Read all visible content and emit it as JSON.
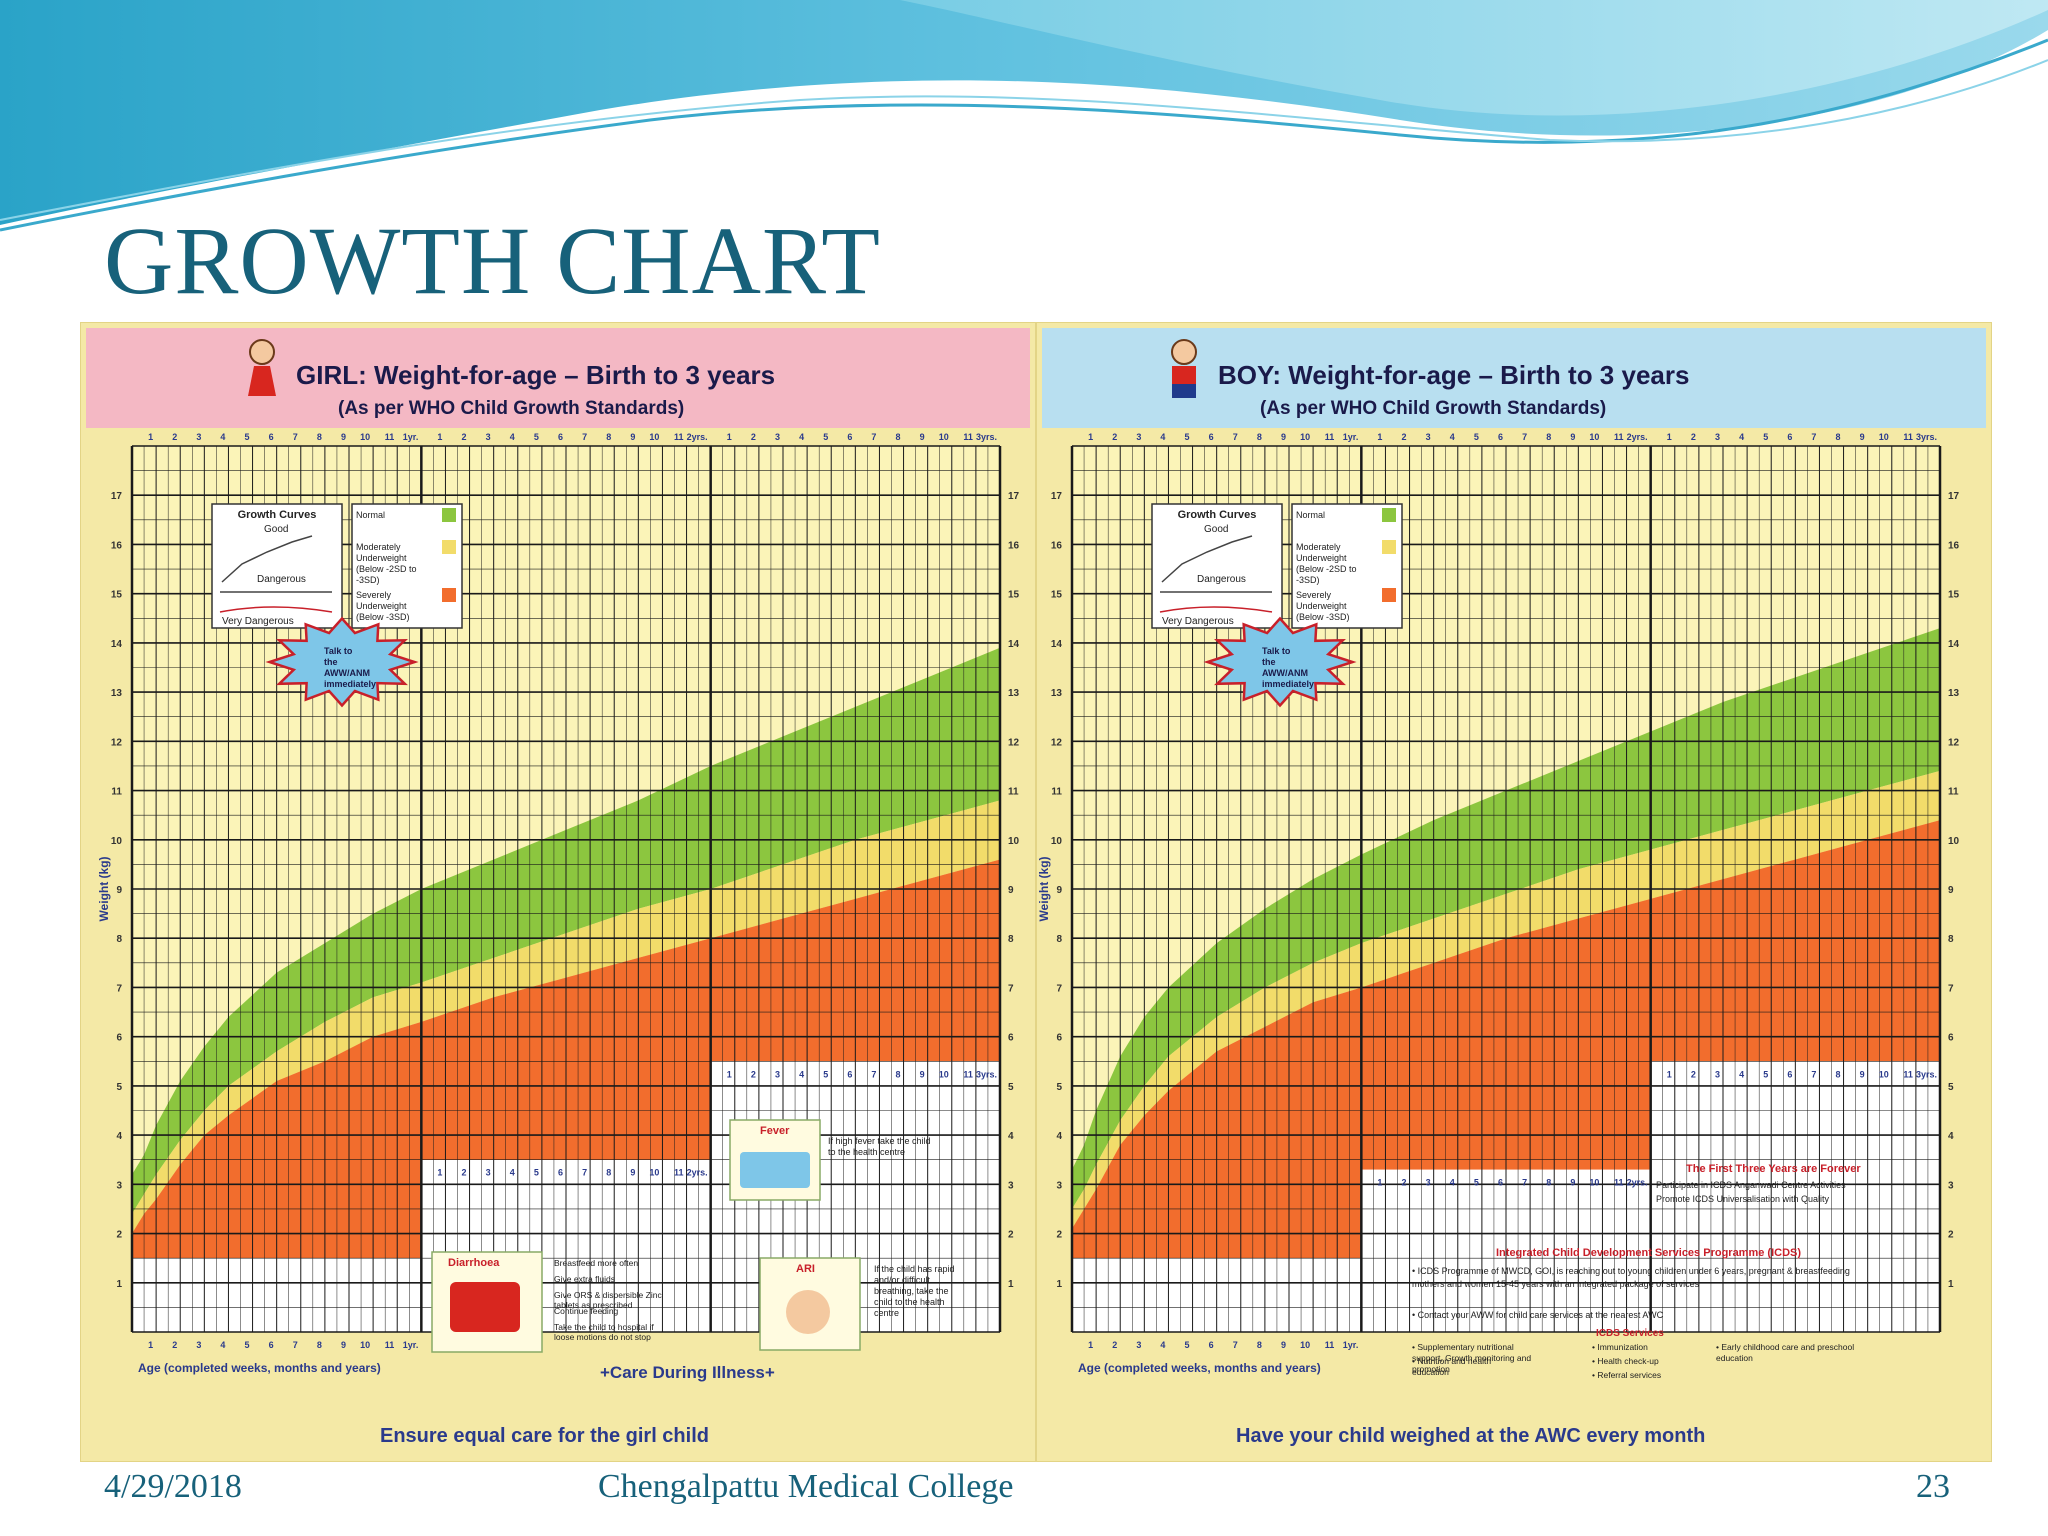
{
  "slide": {
    "title": "GROWTH CHART",
    "date": "4/29/2018",
    "footer": "Chengalpattu Medical College",
    "page_number": "23"
  },
  "colors": {
    "normal": "#8cc63f",
    "moderate": "#f2dc6a",
    "severe": "#f26d2d",
    "grid_bg": "#fbf4b8",
    "girl_header": "#f4b8c4",
    "boy_header": "#b8dff0",
    "text_blue": "#2a3a8c",
    "text_red": "#c8202a"
  },
  "chart_data": [
    {
      "type": "area",
      "title": "GIRL: Weight-for-age – Birth to 3 years",
      "subtitle": "(As per WHO Child Growth Standards)",
      "xlabel": "Age (completed weeks, months and years)",
      "ylabel": "Weight (kg)",
      "x_unit": "months",
      "xlim": [
        0,
        36
      ],
      "ylim": [
        0,
        18
      ],
      "y_ticks": [
        1,
        2,
        3,
        4,
        5,
        6,
        7,
        8,
        9,
        10,
        11,
        12,
        13,
        14,
        15,
        16,
        17
      ],
      "top_tick_labels": [
        "1",
        "2",
        "3",
        "4",
        "5",
        "6",
        "7",
        "8",
        "9",
        "10",
        "11",
        "1yr.",
        "1",
        "2",
        "3",
        "4",
        "5",
        "6",
        "7",
        "8",
        "9",
        "10",
        "11",
        "2yrs.",
        "1",
        "2",
        "3",
        "4",
        "5",
        "6",
        "7",
        "8",
        "9",
        "10",
        "11",
        "3yrs."
      ],
      "x": [
        0,
        0.5,
        1,
        2,
        3,
        4,
        6,
        8,
        10,
        12,
        15,
        18,
        21,
        24,
        27,
        30,
        33,
        36
      ],
      "series": [
        {
          "band": "normal",
          "values": [
            3.2,
            3.6,
            4.2,
            5.1,
            5.8,
            6.4,
            7.3,
            7.9,
            8.5,
            9.0,
            9.6,
            10.2,
            10.8,
            11.5,
            12.1,
            12.7,
            13.3,
            13.9
          ]
        },
        {
          "band": "moderate",
          "values": [
            2.4,
            2.8,
            3.2,
            3.9,
            4.5,
            5.0,
            5.7,
            6.3,
            6.8,
            7.1,
            7.6,
            8.1,
            8.6,
            9.0,
            9.5,
            10.0,
            10.4,
            10.8
          ]
        },
        {
          "band": "severe",
          "values": [
            2.0,
            2.4,
            2.7,
            3.4,
            4.0,
            4.4,
            5.1,
            5.5,
            6.0,
            6.3,
            6.8,
            7.2,
            7.6,
            8.0,
            8.4,
            8.8,
            9.2,
            9.6
          ]
        }
      ],
      "legend_title": "Growth Curves",
      "legend_good": "Good",
      "legend_dangerous": "Dangerous",
      "legend_very_dangerous": "Very Dangerous",
      "legend_entries": [
        "Normal",
        "Moderately Underweight (Below -2SD to -3SD)",
        "Severely Underweight (Below -3SD)"
      ],
      "burst_text": "Talk to the AWW/ANM immediately",
      "footer_banner": "Ensure equal care for the girl child",
      "care_title": "+Care During Illness+",
      "diarrhoea_title": "Diarrhoea",
      "diarrhoea_items": [
        "Breastfeed more often",
        "Give extra fluids",
        "Give ORS & dispersible Zinc tablets as prescribed",
        "Continue feeding",
        "Take the child to hospital if loose motions do not stop"
      ],
      "fever_title": "Fever",
      "fever_text": "If high fever take the child to the health centre",
      "ari_title": "ARI",
      "ari_text": "If the child has rapid and/or difficult breathing, take the child to the health centre"
    },
    {
      "type": "area",
      "title": "BOY: Weight-for-age – Birth to 3 years",
      "subtitle": "(As per WHO Child Growth Standards)",
      "xlabel": "Age (completed weeks, months and years)",
      "ylabel": "Weight (kg)",
      "x_unit": "months",
      "xlim": [
        0,
        36
      ],
      "ylim": [
        0,
        18
      ],
      "y_ticks": [
        1,
        2,
        3,
        4,
        5,
        6,
        7,
        8,
        9,
        10,
        11,
        12,
        13,
        14,
        15,
        16,
        17
      ],
      "top_tick_labels": [
        "1",
        "2",
        "3",
        "4",
        "5",
        "6",
        "7",
        "8",
        "9",
        "10",
        "11",
        "1yr.",
        "1",
        "2",
        "3",
        "4",
        "5",
        "6",
        "7",
        "8",
        "9",
        "10",
        "11",
        "2yrs.",
        "1",
        "2",
        "3",
        "4",
        "5",
        "6",
        "7",
        "8",
        "9",
        "10",
        "11",
        "3yrs."
      ],
      "x": [
        0,
        0.5,
        1,
        2,
        3,
        4,
        6,
        8,
        10,
        12,
        15,
        18,
        21,
        24,
        27,
        30,
        33,
        36
      ],
      "series": [
        {
          "band": "normal",
          "values": [
            3.3,
            3.8,
            4.5,
            5.6,
            6.4,
            7.0,
            7.9,
            8.6,
            9.2,
            9.7,
            10.4,
            11.0,
            11.6,
            12.2,
            12.8,
            13.3,
            13.8,
            14.3
          ]
        },
        {
          "band": "moderate",
          "values": [
            2.5,
            2.9,
            3.4,
            4.3,
            5.0,
            5.6,
            6.4,
            7.0,
            7.5,
            7.9,
            8.4,
            8.9,
            9.4,
            9.8,
            10.2,
            10.6,
            11.0,
            11.4
          ]
        },
        {
          "band": "severe",
          "values": [
            2.1,
            2.5,
            2.9,
            3.8,
            4.4,
            4.9,
            5.7,
            6.2,
            6.7,
            7.0,
            7.5,
            8.0,
            8.4,
            8.8,
            9.2,
            9.6,
            10.0,
            10.4
          ]
        }
      ],
      "legend_title": "Growth Curves",
      "legend_good": "Good",
      "legend_dangerous": "Dangerous",
      "legend_very_dangerous": "Very Dangerous",
      "legend_entries": [
        "Normal",
        "Moderately Underweight (Below -2SD to -3SD)",
        "Severely Underweight (Below -3SD)"
      ],
      "burst_text": "Talk to the AWW/ANM immediately",
      "footer_banner": "Have your child weighed at the AWC every month",
      "forever_title": "The First Three Years are Forever",
      "forever_lines": [
        "Participate in ICDS Anganwadi Centre Activities",
        "Promote ICDS Universalisation with Quality"
      ],
      "icds_title": "Integrated Child Development Services Programme (ICDS)",
      "icds_text": "ICDS Programme of MWCD, GOI, is reaching out to young children under 6 years, pregnant & breastfeeding mothers and women 15-45 years with an integrated package of services",
      "icds_contact": "Contact your AWW for child care services at the nearest AWC",
      "services_title": "ICDS Services",
      "services": [
        "Supplementary nutritional support, Growth monitoring and promotion",
        "Nutrition and health education",
        "Immunization",
        "Health check-up",
        "Referral services",
        "Early childhood care and preschool education"
      ]
    }
  ]
}
